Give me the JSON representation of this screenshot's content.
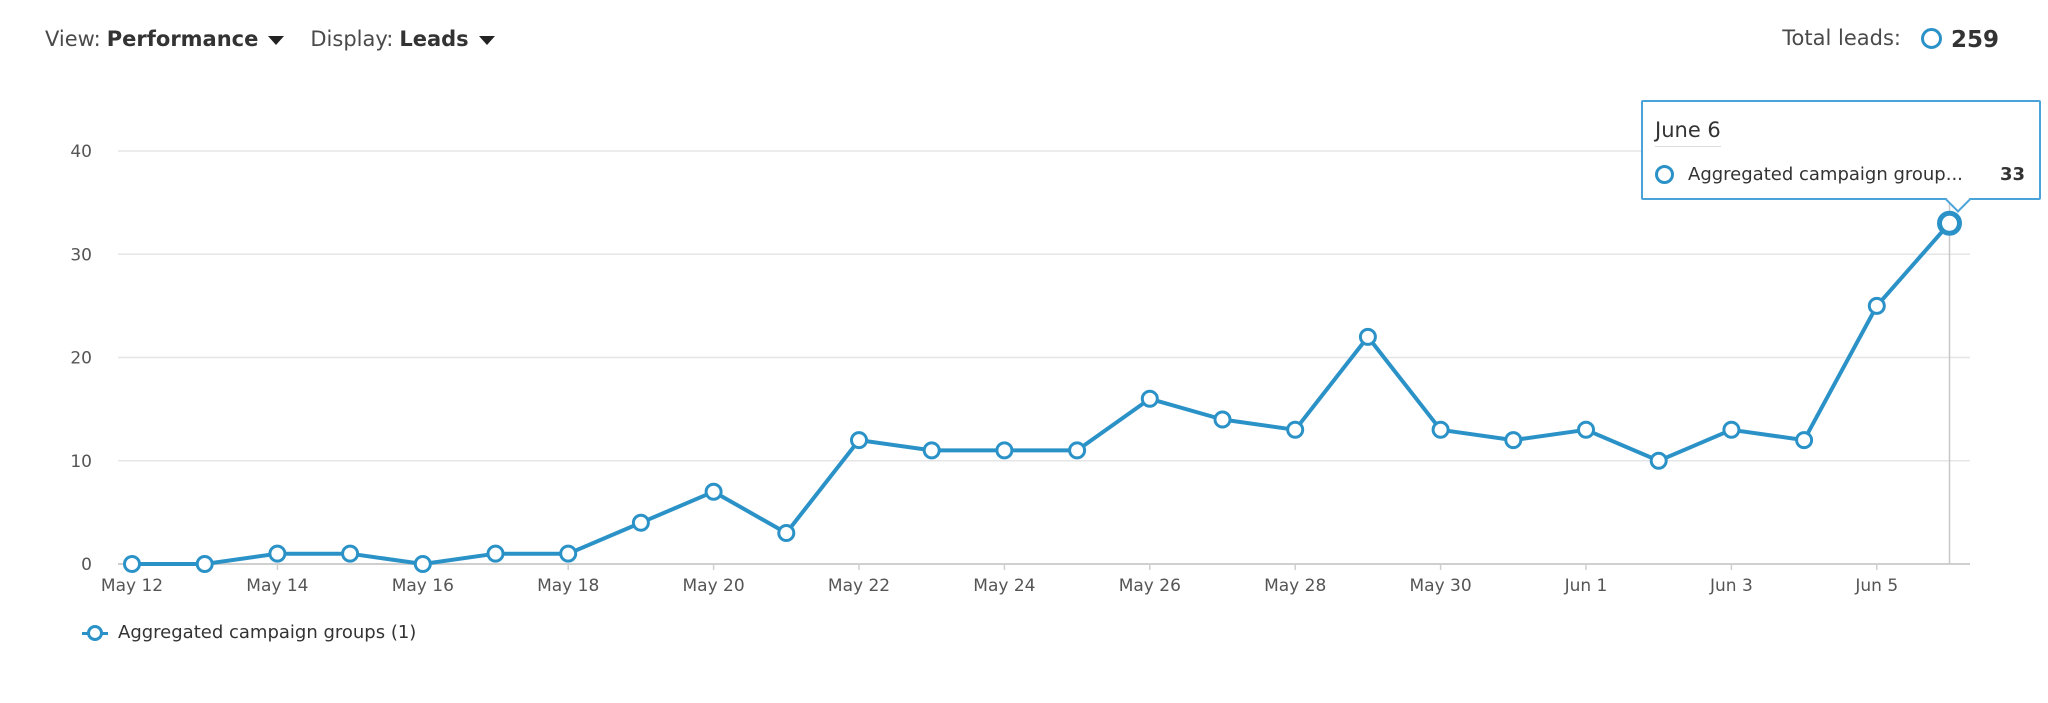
{
  "toolbar": {
    "view_label": "View:",
    "view_value": "Performance",
    "display_label": "Display:",
    "display_value": "Leads"
  },
  "total": {
    "label": "Total leads:",
    "value": "259"
  },
  "tooltip": {
    "date": "June 6",
    "series": "Aggregated campaign group...",
    "value": "33"
  },
  "legend": {
    "label": "Aggregated campaign groups (1)"
  },
  "colors": {
    "series": "#2b92c8",
    "grid": "#e6e6e6",
    "axis_text": "#555555"
  },
  "chart_data": {
    "type": "line",
    "title": "",
    "xlabel": "",
    "ylabel": "",
    "x": [
      "May 12",
      "May 13",
      "May 14",
      "May 15",
      "May 16",
      "May 17",
      "May 18",
      "May 19",
      "May 20",
      "May 21",
      "May 22",
      "May 23",
      "May 24",
      "May 25",
      "May 26",
      "May 27",
      "May 28",
      "May 29",
      "May 30",
      "May 31",
      "Jun 1",
      "Jun 2",
      "Jun 3",
      "Jun 4",
      "Jun 5",
      "Jun 6"
    ],
    "x_tick_labels": [
      "May 12",
      "May 14",
      "May 16",
      "May 18",
      "May 20",
      "May 22",
      "May 24",
      "May 26",
      "May 28",
      "May 30",
      "Jun 1",
      "Jun 3",
      "Jun 5"
    ],
    "series": [
      {
        "name": "Aggregated campaign groups (1)",
        "values": [
          0,
          0,
          1,
          1,
          0,
          1,
          1,
          4,
          7,
          3,
          12,
          11,
          11,
          11,
          16,
          14,
          13,
          22,
          13,
          12,
          13,
          10,
          13,
          12,
          25,
          33
        ]
      }
    ],
    "ylim": [
      0,
      40
    ],
    "yticks": [
      0,
      10,
      20,
      30,
      40
    ],
    "grid": true,
    "legend_position": "bottom-left",
    "highlighted_point": "Jun 6"
  }
}
